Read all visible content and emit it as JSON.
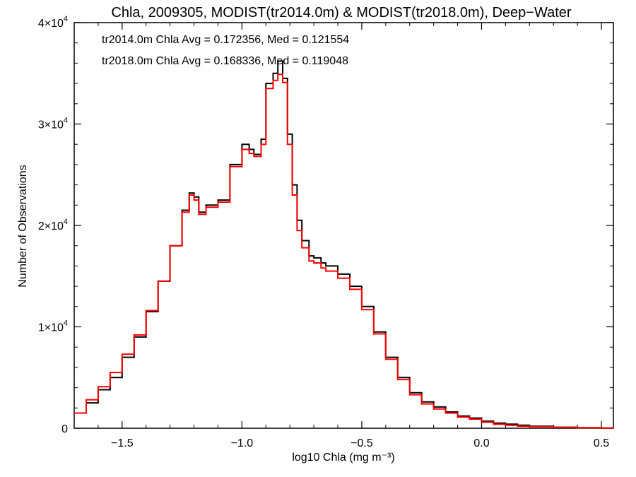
{
  "chart_data": {
    "type": "line",
    "title": "Chla, 2009305, MODIST(tr2014.0m) & MODIST(tr2018.0m), Deep−Water",
    "xlabel": "log10 Chla (mg m⁻³)",
    "ylabel": "Number of Observations",
    "xlim": [
      -1.7,
      0.55
    ],
    "ylim": [
      0,
      40000
    ],
    "step": true,
    "grid": false,
    "x_ticks": [
      {
        "value": -1.5,
        "label": "−1.5"
      },
      {
        "value": -1.0,
        "label": "−1.0"
      },
      {
        "value": -0.5,
        "label": "−0.5"
      },
      {
        "value": 0.0,
        "label": "0.0"
      },
      {
        "value": 0.5,
        "label": "0.5"
      }
    ],
    "y_ticks": [
      {
        "value": 0,
        "mant": "0",
        "exp": ""
      },
      {
        "value": 10000,
        "mant": "1×10",
        "exp": "4"
      },
      {
        "value": 20000,
        "mant": "2×10",
        "exp": "4"
      },
      {
        "value": 30000,
        "mant": "3×10",
        "exp": "4"
      },
      {
        "value": 40000,
        "mant": "4×10",
        "exp": "4"
      }
    ],
    "annotations": [
      {
        "text": "tr2014.0m Chla Avg = 0.172356, Med = 0.121554",
        "color": "#000000"
      },
      {
        "text": "tr2018.0m Chla Avg = 0.168336, Med = 0.119048",
        "color": "#ff0000"
      }
    ],
    "series": [
      {
        "color": "#000000",
        "x": [
          -1.7,
          -1.65,
          -1.6,
          -1.55,
          -1.5,
          -1.45,
          -1.4,
          -1.35,
          -1.3,
          -1.25,
          -1.22,
          -1.2,
          -1.18,
          -1.15,
          -1.1,
          -1.05,
          -1.0,
          -0.97,
          -0.95,
          -0.92,
          -0.9,
          -0.87,
          -0.85,
          -0.83,
          -0.81,
          -0.79,
          -0.77,
          -0.75,
          -0.72,
          -0.7,
          -0.67,
          -0.65,
          -0.6,
          -0.55,
          -0.5,
          -0.45,
          -0.4,
          -0.35,
          -0.3,
          -0.25,
          -0.2,
          -0.15,
          -0.1,
          -0.05,
          0.0,
          0.05,
          0.1,
          0.15,
          0.2,
          0.3,
          0.4,
          0.5,
          0.55
        ],
        "y": [
          1500,
          2500,
          3800,
          5000,
          7000,
          9000,
          11500,
          14500,
          18000,
          21500,
          23200,
          22800,
          21300,
          22000,
          22500,
          26000,
          28000,
          27500,
          27000,
          28500,
          34000,
          35000,
          36200,
          34500,
          29000,
          24000,
          20500,
          18500,
          17000,
          16800,
          16300,
          16000,
          15200,
          14000,
          12000,
          9500,
          7000,
          5000,
          3500,
          2600,
          2100,
          1600,
          1200,
          1000,
          700,
          500,
          400,
          300,
          200,
          100,
          50,
          20,
          10
        ]
      },
      {
        "color": "#ff0000",
        "x": [
          -1.7,
          -1.65,
          -1.6,
          -1.55,
          -1.5,
          -1.45,
          -1.4,
          -1.35,
          -1.3,
          -1.25,
          -1.22,
          -1.2,
          -1.18,
          -1.15,
          -1.1,
          -1.05,
          -1.0,
          -0.97,
          -0.95,
          -0.92,
          -0.9,
          -0.87,
          -0.85,
          -0.83,
          -0.81,
          -0.79,
          -0.77,
          -0.75,
          -0.72,
          -0.7,
          -0.67,
          -0.65,
          -0.6,
          -0.55,
          -0.5,
          -0.45,
          -0.4,
          -0.35,
          -0.3,
          -0.25,
          -0.2,
          -0.15,
          -0.1,
          -0.05,
          0.0,
          0.05,
          0.1,
          0.15,
          0.2,
          0.3,
          0.4,
          0.5,
          0.55
        ],
        "y": [
          1500,
          2800,
          4100,
          5500,
          7300,
          9200,
          11600,
          14500,
          18000,
          21300,
          23000,
          22500,
          21100,
          21800,
          22300,
          25800,
          27500,
          27100,
          26800,
          28000,
          33500,
          34300,
          34900,
          34100,
          28000,
          23000,
          19500,
          17800,
          16500,
          16300,
          15800,
          15500,
          14800,
          13700,
          11700,
          9300,
          6800,
          4800,
          3300,
          2400,
          1900,
          1500,
          1100,
          900,
          600,
          400,
          300,
          200,
          150,
          80,
          40,
          15,
          10
        ]
      }
    ]
  }
}
